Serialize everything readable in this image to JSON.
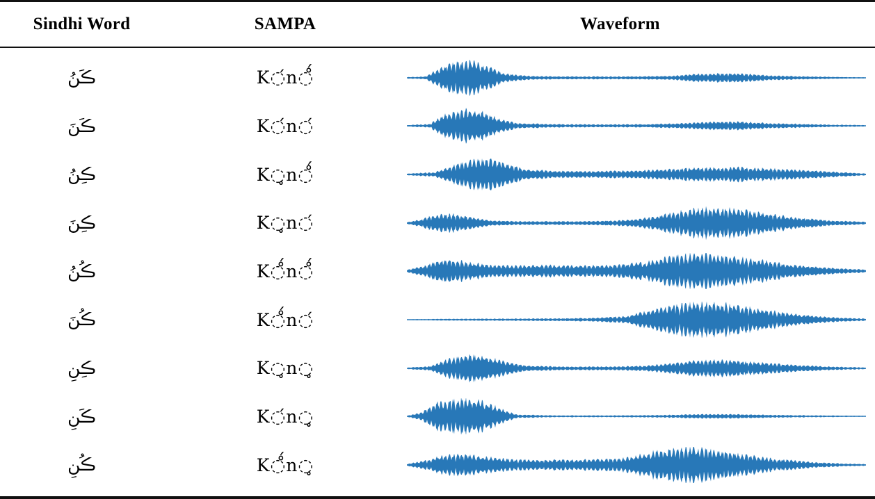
{
  "table": {
    "headers": [
      "Sindhi Word",
      "SAMPA",
      "Waveform"
    ],
    "rows": [
      {
        "sindhi": "ڪَنُ",
        "sampa": "K◌́n◌̊́",
        "envelope": [
          [
            0,
            0.04
          ],
          [
            0.04,
            0.08
          ],
          [
            0.07,
            0.5
          ],
          [
            0.1,
            0.85
          ],
          [
            0.14,
            0.9
          ],
          [
            0.18,
            0.6
          ],
          [
            0.21,
            0.25
          ],
          [
            0.27,
            0.1
          ],
          [
            0.35,
            0.08
          ],
          [
            0.45,
            0.08
          ],
          [
            0.52,
            0.09
          ],
          [
            0.58,
            0.12
          ],
          [
            0.63,
            0.22
          ],
          [
            0.68,
            0.26
          ],
          [
            0.74,
            0.22
          ],
          [
            0.8,
            0.12
          ],
          [
            0.88,
            0.08
          ],
          [
            0.95,
            0.05
          ],
          [
            1,
            0.03
          ]
        ]
      },
      {
        "sindhi": "ڪَنَ",
        "sampa": "K◌́n◌́",
        "envelope": [
          [
            0,
            0.04
          ],
          [
            0.05,
            0.1
          ],
          [
            0.08,
            0.6
          ],
          [
            0.12,
            0.9
          ],
          [
            0.16,
            0.8
          ],
          [
            0.2,
            0.4
          ],
          [
            0.24,
            0.15
          ],
          [
            0.32,
            0.09
          ],
          [
            0.42,
            0.08
          ],
          [
            0.52,
            0.09
          ],
          [
            0.6,
            0.14
          ],
          [
            0.66,
            0.22
          ],
          [
            0.72,
            0.24
          ],
          [
            0.78,
            0.16
          ],
          [
            0.86,
            0.1
          ],
          [
            0.94,
            0.06
          ],
          [
            1,
            0.04
          ]
        ]
      },
      {
        "sindhi": "ڪِنُ",
        "sampa": "K◌̥n◌̊́",
        "envelope": [
          [
            0,
            0.05
          ],
          [
            0.06,
            0.12
          ],
          [
            0.1,
            0.5
          ],
          [
            0.14,
            0.8
          ],
          [
            0.18,
            0.85
          ],
          [
            0.22,
            0.6
          ],
          [
            0.26,
            0.3
          ],
          [
            0.32,
            0.2
          ],
          [
            0.4,
            0.18
          ],
          [
            0.48,
            0.2
          ],
          [
            0.56,
            0.28
          ],
          [
            0.64,
            0.38
          ],
          [
            0.72,
            0.4
          ],
          [
            0.8,
            0.32
          ],
          [
            0.88,
            0.22
          ],
          [
            0.95,
            0.12
          ],
          [
            1,
            0.06
          ]
        ]
      },
      {
        "sindhi": "ڪِنَ",
        "sampa": "K◌̥n◌́",
        "envelope": [
          [
            0,
            0.05
          ],
          [
            0.03,
            0.2
          ],
          [
            0.06,
            0.45
          ],
          [
            0.1,
            0.5
          ],
          [
            0.14,
            0.35
          ],
          [
            0.18,
            0.15
          ],
          [
            0.26,
            0.1
          ],
          [
            0.36,
            0.1
          ],
          [
            0.46,
            0.14
          ],
          [
            0.54,
            0.35
          ],
          [
            0.6,
            0.7
          ],
          [
            0.66,
            0.85
          ],
          [
            0.72,
            0.8
          ],
          [
            0.78,
            0.55
          ],
          [
            0.85,
            0.3
          ],
          [
            0.92,
            0.15
          ],
          [
            1,
            0.07
          ]
        ]
      },
      {
        "sindhi": "ڪُنُ",
        "sampa": "K◌̊́n◌̊́",
        "envelope": [
          [
            0,
            0.07
          ],
          [
            0.04,
            0.3
          ],
          [
            0.07,
            0.6
          ],
          [
            0.1,
            0.65
          ],
          [
            0.14,
            0.45
          ],
          [
            0.2,
            0.3
          ],
          [
            0.28,
            0.33
          ],
          [
            0.36,
            0.3
          ],
          [
            0.44,
            0.32
          ],
          [
            0.52,
            0.5
          ],
          [
            0.58,
            0.85
          ],
          [
            0.64,
            0.95
          ],
          [
            0.7,
            0.85
          ],
          [
            0.77,
            0.6
          ],
          [
            0.84,
            0.35
          ],
          [
            0.92,
            0.18
          ],
          [
            1,
            0.08
          ]
        ]
      },
      {
        "sindhi": "ڪُنَ",
        "sampa": "K◌̊́n◌́",
        "envelope": [
          [
            0,
            0.03
          ],
          [
            0.1,
            0.05
          ],
          [
            0.2,
            0.06
          ],
          [
            0.3,
            0.07
          ],
          [
            0.4,
            0.09
          ],
          [
            0.48,
            0.2
          ],
          [
            0.54,
            0.6
          ],
          [
            0.6,
            0.9
          ],
          [
            0.66,
            0.95
          ],
          [
            0.72,
            0.8
          ],
          [
            0.78,
            0.55
          ],
          [
            0.85,
            0.3
          ],
          [
            0.92,
            0.14
          ],
          [
            1,
            0.06
          ]
        ]
      },
      {
        "sindhi": "ڪِنِ",
        "sampa": "K◌̥n◌̥",
        "envelope": [
          [
            0,
            0.04
          ],
          [
            0.05,
            0.12
          ],
          [
            0.09,
            0.5
          ],
          [
            0.13,
            0.75
          ],
          [
            0.17,
            0.7
          ],
          [
            0.21,
            0.4
          ],
          [
            0.26,
            0.15
          ],
          [
            0.34,
            0.1
          ],
          [
            0.44,
            0.1
          ],
          [
            0.52,
            0.14
          ],
          [
            0.58,
            0.3
          ],
          [
            0.64,
            0.45
          ],
          [
            0.7,
            0.45
          ],
          [
            0.77,
            0.32
          ],
          [
            0.85,
            0.18
          ],
          [
            0.93,
            0.09
          ],
          [
            1,
            0.05
          ]
        ]
      },
      {
        "sindhi": "ڪَنِ",
        "sampa": "K◌́n◌̥",
        "envelope": [
          [
            0,
            0.04
          ],
          [
            0.03,
            0.2
          ],
          [
            0.06,
            0.7
          ],
          [
            0.1,
            0.95
          ],
          [
            0.14,
            0.95
          ],
          [
            0.18,
            0.75
          ],
          [
            0.21,
            0.35
          ],
          [
            0.24,
            0.1
          ],
          [
            0.32,
            0.05
          ],
          [
            0.44,
            0.05
          ],
          [
            0.56,
            0.07
          ],
          [
            0.64,
            0.12
          ],
          [
            0.72,
            0.12
          ],
          [
            0.8,
            0.08
          ],
          [
            0.9,
            0.05
          ],
          [
            1,
            0.03
          ]
        ]
      },
      {
        "sindhi": "ڪُنِ",
        "sampa": "K◌̊́n◌̥",
        "envelope": [
          [
            0,
            0.06
          ],
          [
            0.04,
            0.25
          ],
          [
            0.08,
            0.55
          ],
          [
            0.12,
            0.6
          ],
          [
            0.17,
            0.45
          ],
          [
            0.24,
            0.3
          ],
          [
            0.32,
            0.28
          ],
          [
            0.4,
            0.3
          ],
          [
            0.48,
            0.4
          ],
          [
            0.54,
            0.75
          ],
          [
            0.6,
            0.95
          ],
          [
            0.66,
            0.9
          ],
          [
            0.73,
            0.6
          ],
          [
            0.8,
            0.35
          ],
          [
            0.88,
            0.16
          ],
          [
            0.95,
            0.08
          ],
          [
            1,
            0.05
          ]
        ]
      }
    ]
  },
  "waveform_color": "#2878b8"
}
